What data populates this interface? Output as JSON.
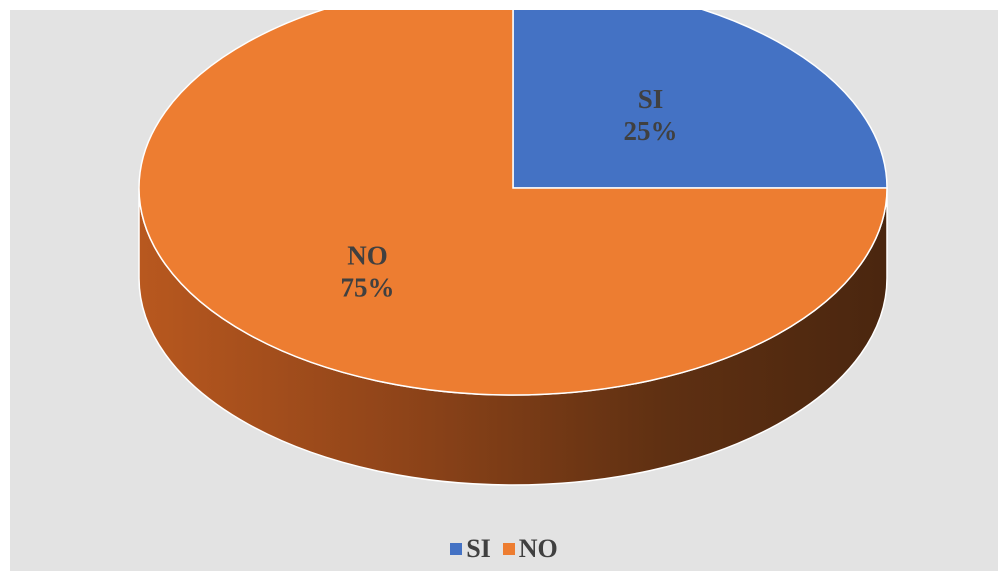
{
  "chart_data": {
    "type": "pie",
    "style": "3d",
    "categories": [
      "SI",
      "NO"
    ],
    "values": [
      25,
      75
    ],
    "labels": [
      {
        "name": "SI",
        "percent": "25%"
      },
      {
        "name": "NO",
        "percent": "75%"
      }
    ],
    "colors": [
      "#4472c4",
      "#ed7d31"
    ],
    "side_colors": [
      "#2f5597",
      "#b5561d"
    ],
    "legend": {
      "position": "bottom",
      "items": [
        "SI",
        "NO"
      ]
    }
  }
}
